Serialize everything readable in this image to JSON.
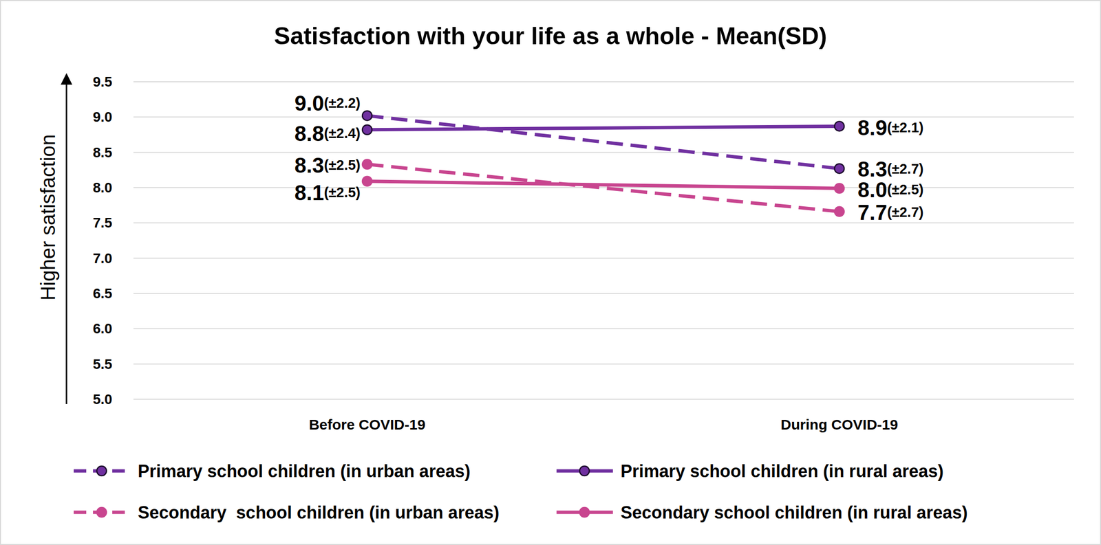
{
  "chart_data": {
    "type": "line",
    "title": "Satisfaction with your life as a whole - Mean(SD)",
    "y_label": "Higher satisfaction",
    "categories": [
      "Before COVID-19",
      "During COVID-19"
    ],
    "series": [
      {
        "name": "Primary school children (in urban areas)",
        "color": "#7030a0",
        "line_style": "dashed",
        "marker": "circle",
        "values": [
          9.02,
          8.27
        ],
        "value_labels": [
          "9.0",
          "8.3"
        ],
        "sd": [
          2.2,
          2.7
        ],
        "sd_labels": [
          "(±2.2)",
          "(±2.7)"
        ]
      },
      {
        "name": "Primary school children (in rural areas)",
        "color": "#7030a0",
        "line_style": "solid",
        "marker": "circle",
        "values": [
          8.82,
          8.87
        ],
        "value_labels": [
          "8.8",
          "8.9"
        ],
        "sd": [
          2.4,
          2.1
        ],
        "sd_labels": [
          "(±2.4)",
          "(±2.1)"
        ]
      },
      {
        "name": "Secondary  school children (in urban areas)",
        "color": "#c8458f",
        "line_style": "dashed",
        "marker": "circle",
        "values": [
          8.33,
          7.66
        ],
        "value_labels": [
          "8.3",
          "7.7"
        ],
        "sd": [
          2.5,
          2.7
        ],
        "sd_labels": [
          "(±2.5)",
          "(±2.7)"
        ]
      },
      {
        "name": "Secondary school children (in rural areas)",
        "color": "#c8458f",
        "line_style": "solid",
        "marker": "circle",
        "values": [
          8.09,
          7.99
        ],
        "value_labels": [
          "8.1",
          "8.0"
        ],
        "sd": [
          2.5,
          2.5
        ],
        "sd_labels": [
          "(±2.5)",
          "(±2.5)"
        ]
      }
    ],
    "ylim": [
      5,
      9.5
    ],
    "yticks": [
      {
        "value": 5,
        "label": "5.0"
      },
      {
        "value": 5.5,
        "label": "5.5"
      },
      {
        "value": 6,
        "label": "6.0"
      },
      {
        "value": 6.5,
        "label": "6.5"
      },
      {
        "value": 7,
        "label": "7.0"
      },
      {
        "value": 7.5,
        "label": "7.5"
      },
      {
        "value": 8,
        "label": "8.0"
      },
      {
        "value": 8.5,
        "label": "8.5"
      },
      {
        "value": 9,
        "label": "9.0"
      },
      {
        "value": 9.5,
        "label": "9.5"
      }
    ],
    "grid": true,
    "legend": "bottom",
    "data_labels": true
  }
}
